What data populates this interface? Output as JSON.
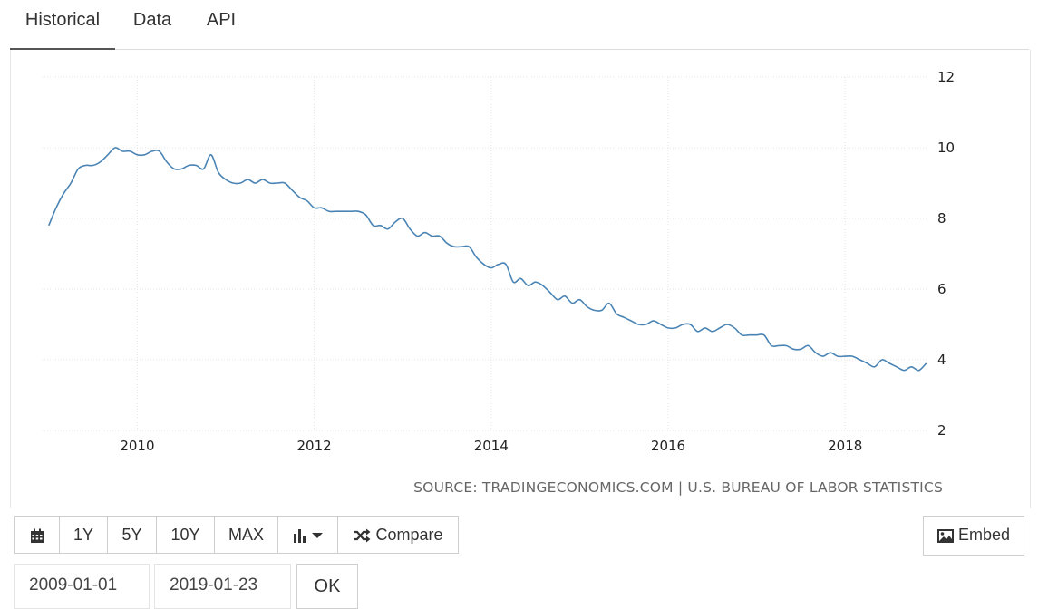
{
  "tabs": [
    {
      "label": "Historical",
      "active": true
    },
    {
      "label": "Data",
      "active": false
    },
    {
      "label": "API",
      "active": false
    }
  ],
  "source_text": "SOURCE: TRADINGECONOMICS.COM | U.S. BUREAU OF LABOR STATISTICS",
  "controls": {
    "calendar_icon": "calendar-icon",
    "ranges": [
      "1Y",
      "5Y",
      "10Y",
      "MAX"
    ],
    "chart_type_icon": "bar-chart-icon",
    "compare_label": "Compare",
    "embed_label": "Embed",
    "start_date": "2009-01-01",
    "end_date": "2019-01-23",
    "ok_label": "OK"
  },
  "colors": {
    "line": "#4a84b4",
    "grid": "#e4e4e4"
  },
  "chart_data": {
    "type": "line",
    "title": "",
    "xlabel": "",
    "ylabel": "",
    "xlim": [
      2008.92,
      2018.92
    ],
    "ylim": [
      2,
      12
    ],
    "y_ticks": [
      2,
      4,
      6,
      8,
      10,
      12
    ],
    "x_ticks": [
      2010,
      2012,
      2014,
      2016,
      2018
    ],
    "y_axis_side": "right",
    "grid": true,
    "legend": "none",
    "series": [
      {
        "x": [
          2009.0,
          2009.083,
          2009.167,
          2009.25,
          2009.333,
          2009.417,
          2009.5,
          2009.583,
          2009.667,
          2009.75,
          2009.833,
          2009.917,
          2010.0,
          2010.083,
          2010.167,
          2010.25,
          2010.333,
          2010.417,
          2010.5,
          2010.583,
          2010.667,
          2010.75,
          2010.833,
          2010.917,
          2011.0,
          2011.083,
          2011.167,
          2011.25,
          2011.333,
          2011.417,
          2011.5,
          2011.583,
          2011.667,
          2011.75,
          2011.833,
          2011.917,
          2012.0,
          2012.083,
          2012.167,
          2012.25,
          2012.333,
          2012.417,
          2012.5,
          2012.583,
          2012.667,
          2012.75,
          2012.833,
          2012.917,
          2013.0,
          2013.083,
          2013.167,
          2013.25,
          2013.333,
          2013.417,
          2013.5,
          2013.583,
          2013.667,
          2013.75,
          2013.833,
          2013.917,
          2014.0,
          2014.083,
          2014.167,
          2014.25,
          2014.333,
          2014.417,
          2014.5,
          2014.583,
          2014.667,
          2014.75,
          2014.833,
          2014.917,
          2015.0,
          2015.083,
          2015.167,
          2015.25,
          2015.333,
          2015.417,
          2015.5,
          2015.583,
          2015.667,
          2015.75,
          2015.833,
          2015.917,
          2016.0,
          2016.083,
          2016.167,
          2016.25,
          2016.333,
          2016.417,
          2016.5,
          2016.583,
          2016.667,
          2016.75,
          2016.833,
          2016.917,
          2017.0,
          2017.083,
          2017.167,
          2017.25,
          2017.333,
          2017.417,
          2017.5,
          2017.583,
          2017.667,
          2017.75,
          2017.833,
          2017.917,
          2018.0,
          2018.083,
          2018.167,
          2018.25,
          2018.333,
          2018.417,
          2018.5,
          2018.583,
          2018.667,
          2018.75,
          2018.833,
          2018.917
        ],
        "values": [
          7.8,
          8.3,
          8.7,
          9.0,
          9.4,
          9.5,
          9.5,
          9.6,
          9.8,
          10.0,
          9.9,
          9.9,
          9.8,
          9.8,
          9.9,
          9.9,
          9.6,
          9.4,
          9.4,
          9.5,
          9.5,
          9.4,
          9.8,
          9.3,
          9.1,
          9.0,
          9.0,
          9.1,
          9.0,
          9.1,
          9.0,
          9.0,
          9.0,
          8.8,
          8.6,
          8.5,
          8.3,
          8.3,
          8.2,
          8.2,
          8.2,
          8.2,
          8.2,
          8.1,
          7.8,
          7.8,
          7.7,
          7.9,
          8.0,
          7.7,
          7.5,
          7.6,
          7.5,
          7.5,
          7.3,
          7.2,
          7.2,
          7.2,
          6.9,
          6.7,
          6.6,
          6.7,
          6.7,
          6.2,
          6.3,
          6.1,
          6.2,
          6.1,
          5.9,
          5.7,
          5.8,
          5.6,
          5.7,
          5.5,
          5.4,
          5.4,
          5.6,
          5.3,
          5.2,
          5.1,
          5.0,
          5.0,
          5.1,
          5.0,
          4.9,
          4.9,
          5.0,
          5.0,
          4.8,
          4.9,
          4.8,
          4.9,
          5.0,
          4.9,
          4.7,
          4.7,
          4.7,
          4.7,
          4.4,
          4.4,
          4.4,
          4.3,
          4.3,
          4.4,
          4.2,
          4.1,
          4.2,
          4.1,
          4.1,
          4.1,
          4.0,
          3.9,
          3.8,
          4.0,
          3.9,
          3.8,
          3.7,
          3.8,
          3.7,
          3.9
        ]
      }
    ]
  }
}
